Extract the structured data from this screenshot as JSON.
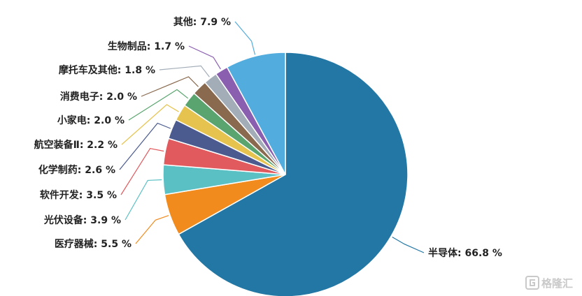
{
  "chart_data": {
    "type": "pie",
    "title": "",
    "start_angle_deg": 0,
    "direction": "clockwise",
    "slices": [
      {
        "label": "半导体",
        "value": 66.8,
        "display": "半导体: 66.8 %",
        "color": "#2277a4"
      },
      {
        "label": "医疗器械",
        "value": 5.5,
        "display": "医疗器械: 5.5 %",
        "color": "#f28b1d"
      },
      {
        "label": "光伏设备",
        "value": 3.9,
        "display": "光伏设备: 3.9 %",
        "color": "#5bc0c4"
      },
      {
        "label": "软件开发",
        "value": 3.5,
        "display": "软件开发: 3.5 %",
        "color": "#e15a5e"
      },
      {
        "label": "化学制药",
        "value": 2.6,
        "display": "化学制药: 2.6 %",
        "color": "#4b5b8f"
      },
      {
        "label": "航空装备Ⅱ",
        "value": 2.2,
        "display": "航空装备Ⅱ: 2.2 %",
        "color": "#e6c34e"
      },
      {
        "label": "小家电",
        "value": 2.0,
        "display": "小家电: 2.0 %",
        "color": "#5aa56f"
      },
      {
        "label": "消费电子",
        "value": 2.0,
        "display": "消费电子: 2.0 %",
        "color": "#8a6a4e"
      },
      {
        "label": "摩托车及其他",
        "value": 1.8,
        "display": "摩托车及其他: 1.8 %",
        "color": "#a3adb8"
      },
      {
        "label": "生物制品",
        "value": 1.7,
        "display": "生物制品: 1.7 %",
        "color": "#8b5fb0"
      },
      {
        "label": "其他",
        "value": 7.9,
        "display": "其他: 7.9 %",
        "color": "#52acde"
      }
    ]
  },
  "watermark": {
    "text": "格隆汇",
    "icon": "g-logo-icon"
  }
}
